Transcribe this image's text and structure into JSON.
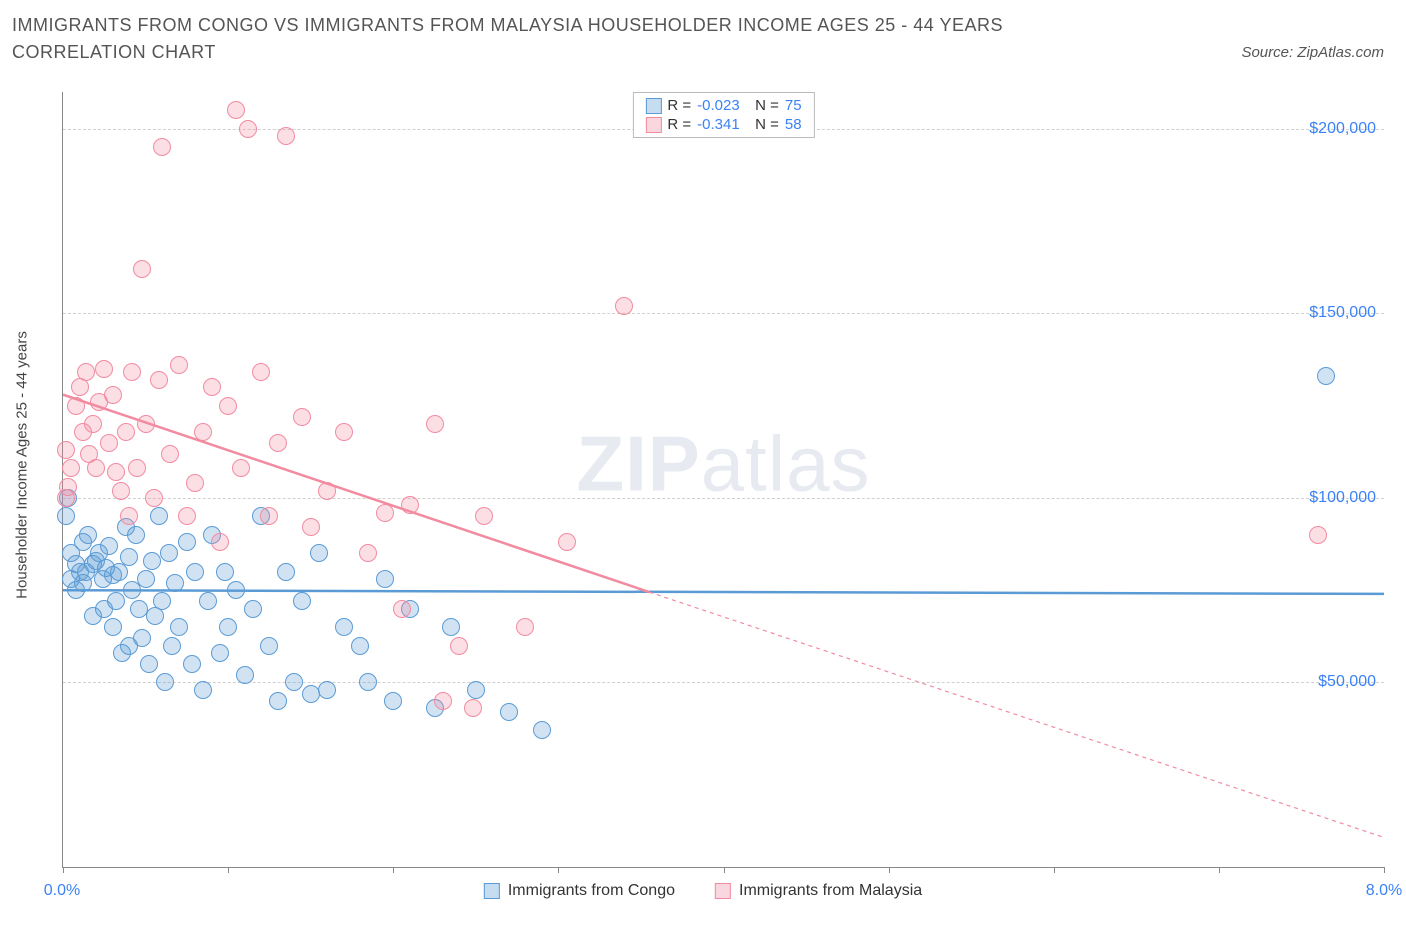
{
  "title": "IMMIGRANTS FROM CONGO VS IMMIGRANTS FROM MALAYSIA HOUSEHOLDER INCOME AGES 25 - 44 YEARS CORRELATION CHART",
  "source": "Source: ZipAtlas.com",
  "yaxis_label": "Householder Income Ages 25 - 44 years",
  "watermark_a": "ZIP",
  "watermark_b": "atlas",
  "chart": {
    "type": "scatter",
    "xlim": [
      0,
      8
    ],
    "ylim": [
      0,
      210000
    ],
    "x_ticks": [
      0,
      1,
      2,
      3,
      4,
      5,
      6,
      7,
      8
    ],
    "x_tick_labels": [
      "0.0%",
      "",
      "",
      "",
      "",
      "",
      "",
      "",
      "8.0%"
    ],
    "y_grid": [
      50000,
      100000,
      150000,
      200000
    ],
    "y_tick_labels": [
      "$50,000",
      "$100,000",
      "$150,000",
      "$200,000"
    ],
    "background_color": "#ffffff",
    "grid_color": "#d0d0d0",
    "axis_color": "#888888",
    "marker_radius": 9,
    "marker_opacity_fill": 0.28,
    "series": [
      {
        "name": "Immigrants from Congo",
        "color": "#5b9bd5",
        "fill": "rgba(91,155,213,0.28)",
        "stroke": "#5b9bd5",
        "R": "-0.023",
        "N": "75",
        "trend": {
          "x1": 0,
          "y1": 75000,
          "x2": 8,
          "y2": 74000,
          "dash_after_x": 8
        },
        "points": [
          [
            0.02,
            95000
          ],
          [
            0.03,
            100000
          ],
          [
            0.05,
            78000
          ],
          [
            0.08,
            82000
          ],
          [
            0.1,
            80000
          ],
          [
            0.12,
            77000
          ],
          [
            0.12,
            88000
          ],
          [
            0.14,
            80000
          ],
          [
            0.15,
            90000
          ],
          [
            0.18,
            82000
          ],
          [
            0.18,
            68000
          ],
          [
            0.2,
            83000
          ],
          [
            0.22,
            85000
          ],
          [
            0.24,
            78000
          ],
          [
            0.25,
            70000
          ],
          [
            0.26,
            81000
          ],
          [
            0.28,
            87000
          ],
          [
            0.3,
            79000
          ],
          [
            0.3,
            65000
          ],
          [
            0.32,
            72000
          ],
          [
            0.34,
            80000
          ],
          [
            0.36,
            58000
          ],
          [
            0.38,
            92000
          ],
          [
            0.4,
            84000
          ],
          [
            0.4,
            60000
          ],
          [
            0.42,
            75000
          ],
          [
            0.44,
            90000
          ],
          [
            0.46,
            70000
          ],
          [
            0.48,
            62000
          ],
          [
            0.5,
            78000
          ],
          [
            0.52,
            55000
          ],
          [
            0.54,
            83000
          ],
          [
            0.56,
            68000
          ],
          [
            0.58,
            95000
          ],
          [
            0.6,
            72000
          ],
          [
            0.62,
            50000
          ],
          [
            0.64,
            85000
          ],
          [
            0.66,
            60000
          ],
          [
            0.68,
            77000
          ],
          [
            0.7,
            65000
          ],
          [
            0.75,
            88000
          ],
          [
            0.78,
            55000
          ],
          [
            0.8,
            80000
          ],
          [
            0.85,
            48000
          ],
          [
            0.88,
            72000
          ],
          [
            0.9,
            90000
          ],
          [
            0.95,
            58000
          ],
          [
            0.98,
            80000
          ],
          [
            1.0,
            65000
          ],
          [
            1.05,
            75000
          ],
          [
            1.1,
            52000
          ],
          [
            1.15,
            70000
          ],
          [
            1.2,
            95000
          ],
          [
            1.25,
            60000
          ],
          [
            1.3,
            45000
          ],
          [
            1.35,
            80000
          ],
          [
            1.4,
            50000
          ],
          [
            1.45,
            72000
          ],
          [
            1.5,
            47000
          ],
          [
            1.55,
            85000
          ],
          [
            1.6,
            48000
          ],
          [
            1.7,
            65000
          ],
          [
            1.8,
            60000
          ],
          [
            1.85,
            50000
          ],
          [
            1.95,
            78000
          ],
          [
            2.0,
            45000
          ],
          [
            2.1,
            70000
          ],
          [
            2.25,
            43000
          ],
          [
            2.35,
            65000
          ],
          [
            2.5,
            48000
          ],
          [
            2.7,
            42000
          ],
          [
            2.9,
            37000
          ],
          [
            7.65,
            133000
          ],
          [
            0.05,
            85000
          ],
          [
            0.08,
            75000
          ]
        ]
      },
      {
        "name": "Immigrants from Malaysia",
        "color": "#f28ba0",
        "fill": "rgba(242,139,160,0.28)",
        "stroke": "#f28ba0",
        "R": "-0.341",
        "N": "58",
        "trend": {
          "x1": 0,
          "y1": 128000,
          "x2": 3.55,
          "y2": 74500,
          "dash_after_x": 3.55,
          "dash_end_x": 8,
          "dash_end_y": 8000
        },
        "points": [
          [
            0.02,
            113000
          ],
          [
            0.02,
            100000
          ],
          [
            0.05,
            108000
          ],
          [
            0.08,
            125000
          ],
          [
            0.1,
            130000
          ],
          [
            0.12,
            118000
          ],
          [
            0.14,
            134000
          ],
          [
            0.16,
            112000
          ],
          [
            0.18,
            120000
          ],
          [
            0.2,
            108000
          ],
          [
            0.22,
            126000
          ],
          [
            0.25,
            135000
          ],
          [
            0.28,
            115000
          ],
          [
            0.3,
            128000
          ],
          [
            0.32,
            107000
          ],
          [
            0.35,
            102000
          ],
          [
            0.38,
            118000
          ],
          [
            0.4,
            95000
          ],
          [
            0.42,
            134000
          ],
          [
            0.45,
            108000
          ],
          [
            0.48,
            162000
          ],
          [
            0.5,
            120000
          ],
          [
            0.55,
            100000
          ],
          [
            0.58,
            132000
          ],
          [
            0.6,
            195000
          ],
          [
            0.65,
            112000
          ],
          [
            0.7,
            136000
          ],
          [
            0.75,
            95000
          ],
          [
            0.8,
            104000
          ],
          [
            0.85,
            118000
          ],
          [
            0.9,
            130000
          ],
          [
            0.95,
            88000
          ],
          [
            1.0,
            125000
          ],
          [
            1.05,
            205000
          ],
          [
            1.08,
            108000
          ],
          [
            1.12,
            200000
          ],
          [
            1.2,
            134000
          ],
          [
            1.25,
            95000
          ],
          [
            1.3,
            115000
          ],
          [
            1.35,
            198000
          ],
          [
            1.45,
            122000
          ],
          [
            1.5,
            92000
          ],
          [
            1.6,
            102000
          ],
          [
            1.7,
            118000
          ],
          [
            1.85,
            85000
          ],
          [
            1.95,
            96000
          ],
          [
            2.05,
            70000
          ],
          [
            2.1,
            98000
          ],
          [
            2.25,
            120000
          ],
          [
            2.3,
            45000
          ],
          [
            2.4,
            60000
          ],
          [
            2.48,
            43000
          ],
          [
            2.55,
            95000
          ],
          [
            2.8,
            65000
          ],
          [
            3.05,
            88000
          ],
          [
            3.4,
            152000
          ],
          [
            7.6,
            90000
          ],
          [
            0.03,
            103000
          ]
        ]
      }
    ]
  },
  "legend_bottom": [
    {
      "label": "Immigrants from Congo",
      "fill": "rgba(91,155,213,0.35)",
      "stroke": "#5b9bd5"
    },
    {
      "label": "Immigrants from Malaysia",
      "fill": "rgba(242,139,160,0.35)",
      "stroke": "#f28ba0"
    }
  ],
  "legend_top": [
    {
      "fill": "rgba(91,155,213,0.35)",
      "stroke": "#5b9bd5",
      "R_label": "R =",
      "R": "-0.023",
      "N_label": "N =",
      "N": "75"
    },
    {
      "fill": "rgba(242,139,160,0.35)",
      "stroke": "#f28ba0",
      "R_label": "R =",
      "R": "-0.341",
      "N_label": "N =",
      "N": "58"
    }
  ]
}
